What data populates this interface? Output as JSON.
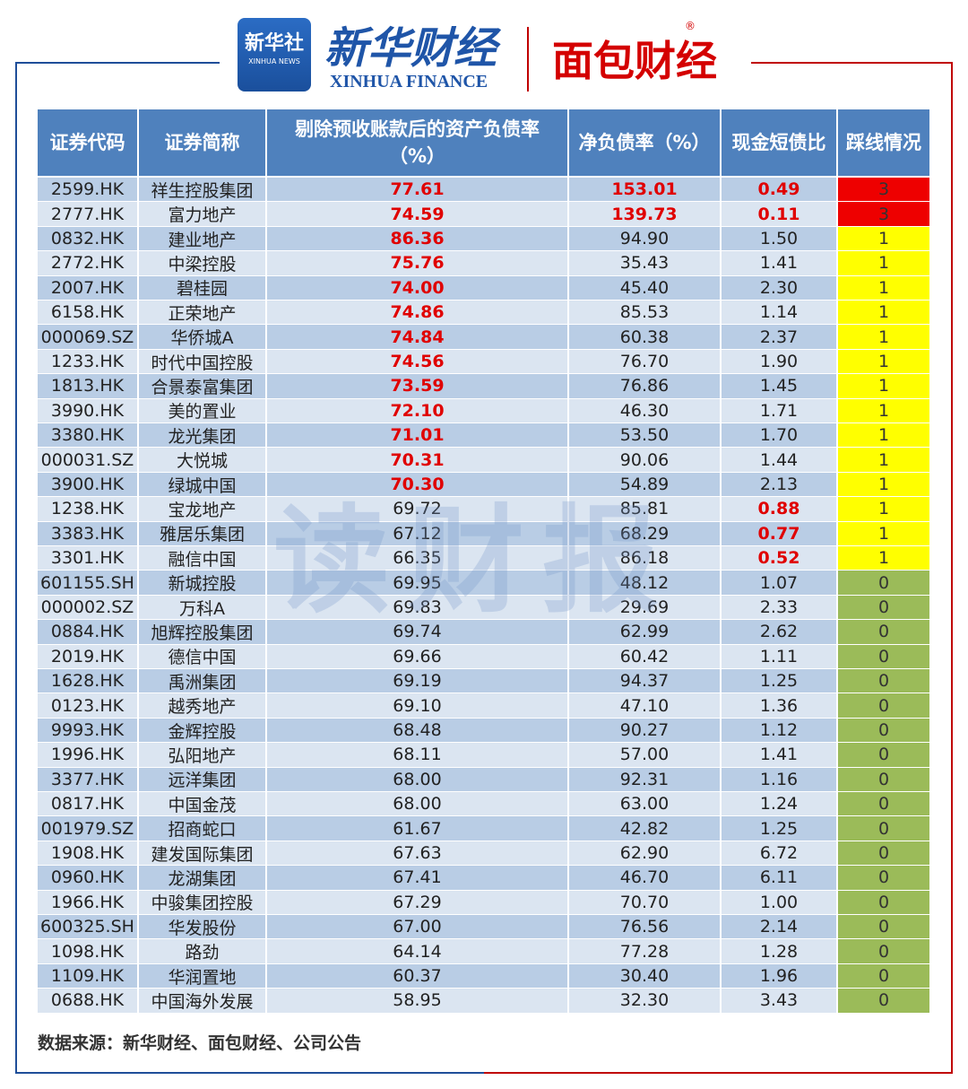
{
  "header": {
    "logo_cn": "新华社",
    "logo_en": "XINHUA NEWS",
    "brand_cn": "新华财经",
    "brand_en": "XINHUA FINANCE",
    "partner": "面包财经",
    "registered": "®"
  },
  "watermark": "读财报",
  "table": {
    "columns": [
      "证券代码",
      "证券简称",
      "剔除预收账款后的资产负债率（%）",
      "净负债率（%）",
      "现金短债比",
      "踩线情况"
    ],
    "rows": [
      [
        "2599.HK",
        "祥生控股集团",
        "77.61",
        "153.01",
        "0.49",
        "3"
      ],
      [
        "2777.HK",
        "富力地产",
        "74.59",
        "139.73",
        "0.11",
        "3"
      ],
      [
        "0832.HK",
        "建业地产",
        "86.36",
        "94.90",
        "1.50",
        "1"
      ],
      [
        "2772.HK",
        "中梁控股",
        "75.76",
        "35.43",
        "1.41",
        "1"
      ],
      [
        "2007.HK",
        "碧桂园",
        "74.00",
        "45.40",
        "2.30",
        "1"
      ],
      [
        "6158.HK",
        "正荣地产",
        "74.86",
        "85.53",
        "1.14",
        "1"
      ],
      [
        "000069.SZ",
        "华侨城A",
        "74.84",
        "60.38",
        "2.37",
        "1"
      ],
      [
        "1233.HK",
        "时代中国控股",
        "74.56",
        "76.70",
        "1.90",
        "1"
      ],
      [
        "1813.HK",
        "合景泰富集团",
        "73.59",
        "76.86",
        "1.45",
        "1"
      ],
      [
        "3990.HK",
        "美的置业",
        "72.10",
        "46.30",
        "1.71",
        "1"
      ],
      [
        "3380.HK",
        "龙光集团",
        "71.01",
        "53.50",
        "1.70",
        "1"
      ],
      [
        "000031.SZ",
        "大悦城",
        "70.31",
        "90.06",
        "1.44",
        "1"
      ],
      [
        "3900.HK",
        "绿城中国",
        "70.30",
        "54.89",
        "2.13",
        "1"
      ],
      [
        "1238.HK",
        "宝龙地产",
        "69.72",
        "85.81",
        "0.88",
        "1"
      ],
      [
        "3383.HK",
        "雅居乐集团",
        "67.12",
        "68.29",
        "0.77",
        "1"
      ],
      [
        "3301.HK",
        "融信中国",
        "66.35",
        "86.18",
        "0.52",
        "1"
      ],
      [
        "601155.SH",
        "新城控股",
        "69.95",
        "48.12",
        "1.07",
        "0"
      ],
      [
        "000002.SZ",
        "万科A",
        "69.83",
        "29.69",
        "2.33",
        "0"
      ],
      [
        "0884.HK",
        "旭辉控股集团",
        "69.74",
        "62.99",
        "2.62",
        "0"
      ],
      [
        "2019.HK",
        "德信中国",
        "69.66",
        "60.42",
        "1.11",
        "0"
      ],
      [
        "1628.HK",
        "禹洲集团",
        "69.19",
        "94.37",
        "1.25",
        "0"
      ],
      [
        "0123.HK",
        "越秀地产",
        "69.10",
        "47.10",
        "1.36",
        "0"
      ],
      [
        "9993.HK",
        "金辉控股",
        "68.48",
        "90.27",
        "1.12",
        "0"
      ],
      [
        "1996.HK",
        "弘阳地产",
        "68.11",
        "57.00",
        "1.41",
        "0"
      ],
      [
        "3377.HK",
        "远洋集团",
        "68.00",
        "92.31",
        "1.16",
        "0"
      ],
      [
        "0817.HK",
        "中国金茂",
        "68.00",
        "63.00",
        "1.24",
        "0"
      ],
      [
        "001979.SZ",
        "招商蛇口",
        "61.67",
        "42.82",
        "1.25",
        "0"
      ],
      [
        "1908.HK",
        "建发国际集团",
        "67.63",
        "62.90",
        "6.72",
        "0"
      ],
      [
        "0960.HK",
        "龙湖集团",
        "67.41",
        "46.70",
        "6.11",
        "0"
      ],
      [
        "1966.HK",
        "中骏集团控股",
        "67.29",
        "70.70",
        "1.00",
        "0"
      ],
      [
        "600325.SH",
        "华发股份",
        "67.00",
        "76.56",
        "2.14",
        "0"
      ],
      [
        "1098.HK",
        "路劲",
        "64.14",
        "77.28",
        "1.28",
        "0"
      ],
      [
        "1109.HK",
        "华润置地",
        "60.37",
        "30.40",
        "1.96",
        "0"
      ],
      [
        "0688.HK",
        "中国海外发展",
        "58.95",
        "32.30",
        "3.43",
        "0"
      ]
    ]
  },
  "footer": "数据来源：新华财经、面包财经、公司公告"
}
